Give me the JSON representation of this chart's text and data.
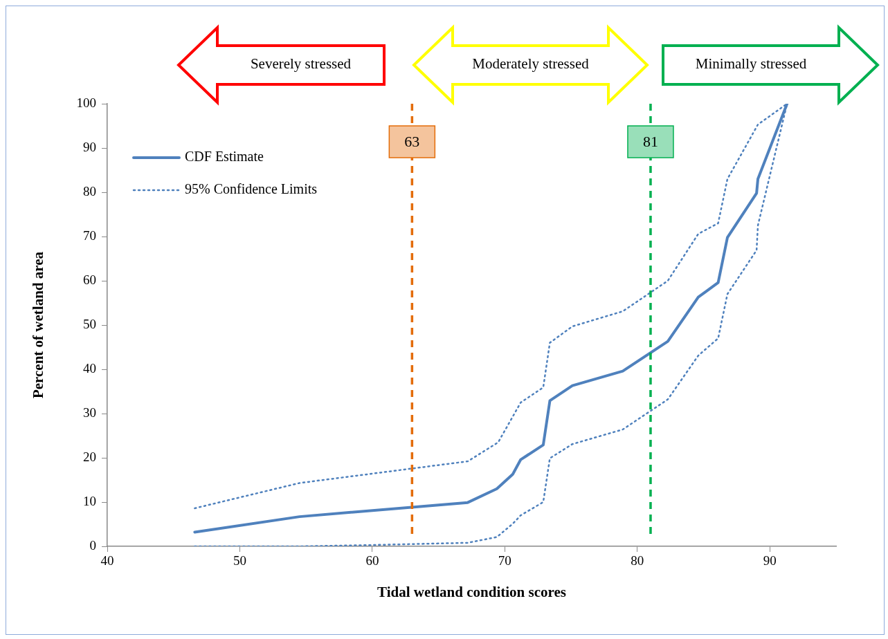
{
  "chart_data": {
    "type": "line",
    "xlabel": "Tidal wetland condition scores",
    "ylabel": "Percent of wetland area",
    "xlim": [
      40,
      95
    ],
    "xticks": [
      40,
      50,
      60,
      70,
      80,
      90
    ],
    "ylim": [
      0,
      100
    ],
    "yticks": [
      0,
      10,
      20,
      30,
      40,
      50,
      60,
      70,
      80,
      90,
      100
    ],
    "grid": false,
    "legend": "top left",
    "marker": "none",
    "annotations": [
      "Severely stressed",
      "Moderately stressed",
      "Minimally stressed"
    ],
    "ref_lines": [
      {
        "axis": "x",
        "value": 63,
        "label": "63",
        "color": "#e36c09",
        "line_style": "dashed"
      },
      {
        "axis": "x",
        "value": 81,
        "label": "81",
        "color": "#00b050",
        "line_style": "dashed"
      }
    ],
    "series": [
      {
        "name": "CDF Estimate",
        "color": "#4f81bd",
        "line_style": "solid",
        "x": [
          46.6,
          54.5,
          67.2,
          69.4,
          70.6,
          71.2,
          72.9,
          73.4,
          75.1,
          78.9,
          82.3,
          84.6,
          86.1,
          86.8,
          89.0,
          89.1,
          91.3
        ],
        "values": [
          3.2,
          6.7,
          9.9,
          13.0,
          16.3,
          19.6,
          22.9,
          32.9,
          36.3,
          39.6,
          46.3,
          56.3,
          59.6,
          69.8,
          79.8,
          83.0,
          100
        ]
      },
      {
        "name": "95% Confidence Limits",
        "color": "#4f81bd",
        "line_style": "dotted",
        "x": [
          46.6,
          54.5,
          67.2,
          69.5,
          71.2,
          72.9,
          73.4,
          75.1,
          78.9,
          82.3,
          84.6,
          86.1,
          86.8,
          89.1,
          91.3
        ],
        "values": [
          8.6,
          14.3,
          19.2,
          23.5,
          32.5,
          35.9,
          46.0,
          49.7,
          53.1,
          60.0,
          70.6,
          73.0,
          83.0,
          95.3,
          100
        ]
      },
      {
        "color": "#4f81bd",
        "line_style": "dotted",
        "x": [
          46.6,
          54.5,
          60.0,
          67.2,
          69.4,
          70.6,
          71.2,
          72.9,
          73.4,
          75.1,
          78.9,
          82.3,
          84.6,
          86.1,
          86.8,
          89.0,
          89.1,
          91.3
        ],
        "values": [
          0,
          0,
          0.3,
          0.8,
          2.1,
          5.1,
          7.0,
          10.0,
          19.9,
          23.1,
          26.4,
          33.2,
          43.1,
          47.0,
          57.0,
          66.9,
          72.5,
          100
        ]
      }
    ]
  }
}
